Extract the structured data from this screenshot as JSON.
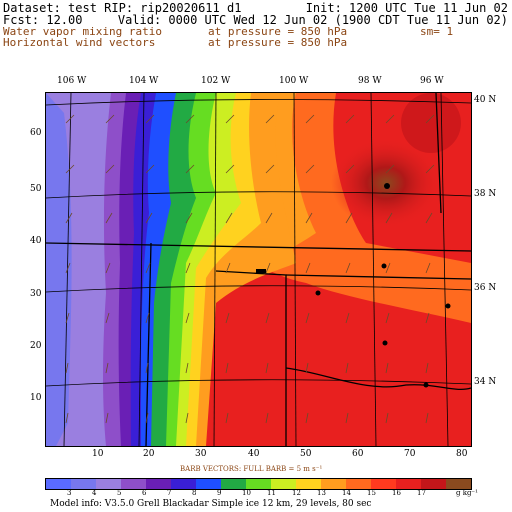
{
  "header": {
    "line1_left": "Dataset: test  RIP: rip20020611 d1",
    "line1_right": "Init: 1200 UTC Tue 11 Jun 02",
    "line2_left": "Fcst:    12.00",
    "line2_right": "Valid: 0000 UTC Wed 12 Jun 02 (1900 CDT Tue 11 Jun 02)",
    "field1_name": "Water vapor mixing ratio",
    "field1_level": "at pressure =   850 hPa",
    "field1_extra": "sm= 1",
    "field2_name": "Horizontal wind vectors",
    "field2_level": "at pressure =   850 hPa"
  },
  "top_lon_labels": [
    "106 W",
    "104 W",
    "102 W",
    "100 W",
    "98 W",
    "96 W"
  ],
  "right_lat_labels": [
    "40 N",
    "38 N",
    "36 N",
    "34 N"
  ],
  "left_y_ticks": [
    "60",
    "50",
    "40",
    "30",
    "20",
    "10"
  ],
  "bottom_x_ticks": [
    "10",
    "20",
    "30",
    "40",
    "50",
    "60",
    "70",
    "80"
  ],
  "barb_note": "BARB VECTORS:  FULL BARB = 5 m s⁻¹",
  "legend": {
    "labels": [
      "3",
      "4",
      "5",
      "6",
      "7",
      "8",
      "9",
      "10",
      "11",
      "12",
      "13",
      "14",
      "15",
      "16",
      "17"
    ],
    "unit": "g kg⁻¹",
    "colors": [
      "#5a6bff",
      "#7777ee",
      "#9a7fe0",
      "#8e4fc9",
      "#6a1fb5",
      "#3a1fd6",
      "#1f4fff",
      "#22aa44",
      "#66dd22",
      "#ccee22",
      "#ffd21f",
      "#ff9d1f",
      "#ff6a1f",
      "#ff3a1f",
      "#e8201f",
      "#c4161a",
      "#8a4a1f"
    ]
  },
  "footer": "Model info: V3.5.0  Grell     Blackadar  Simple ice    12 km,  29 levels,   80 sec"
}
